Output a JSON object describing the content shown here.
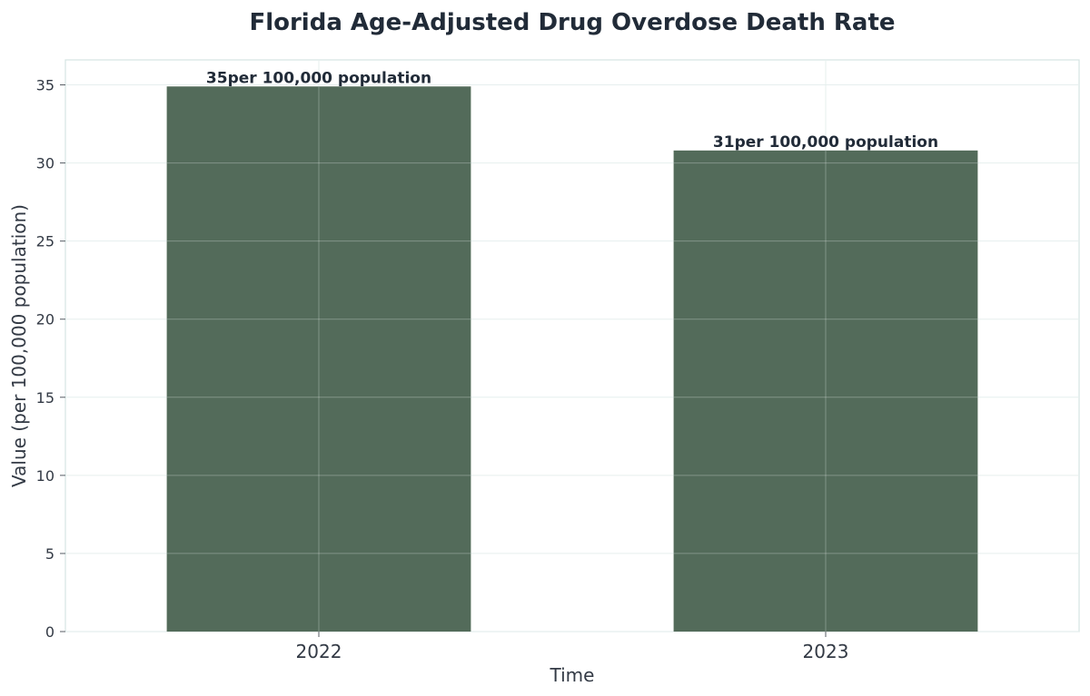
{
  "chart_data": {
    "type": "bar",
    "title": "Florida Age-Adjusted Drug Overdose Death Rate",
    "xlabel": "Time",
    "ylabel": "Value (per 100,000 population)",
    "categories": [
      "2022",
      "2023"
    ],
    "values": [
      34.9,
      30.8
    ],
    "data_labels": [
      "35per 100,000 population",
      "31per 100,000 population"
    ],
    "ylim": [
      0,
      36.6
    ],
    "yticks": [
      0,
      5,
      10,
      15,
      20,
      25,
      30,
      35
    ],
    "grid": true,
    "legend": "none",
    "colors": {
      "bar": "#536b5a",
      "grid": "#e6efee",
      "axis": "#d5e4e2",
      "text": "#212b38"
    }
  }
}
